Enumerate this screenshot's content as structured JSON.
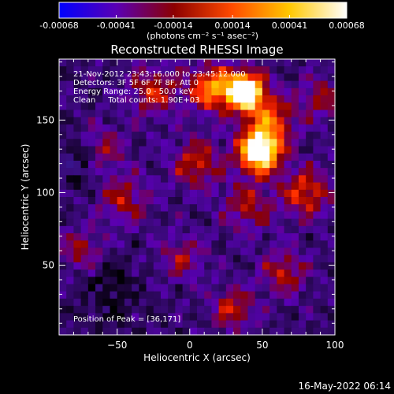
{
  "chart_data": {
    "type": "heatmap",
    "title": "Reconstructed RHESSI Image",
    "xlabel": "Heliocentric X (arcsec)",
    "ylabel": "Heliocentric Y (arcsec)",
    "xlim": [
      -90,
      100
    ],
    "ylim": [
      2,
      192
    ],
    "x_ticks": [
      -50,
      0,
      50,
      100
    ],
    "y_ticks": [
      50,
      100,
      150
    ],
    "colorbar": {
      "label": "(photons cm⁻² s⁻¹ asec⁻²)",
      "range": [
        -0.00068,
        0.00068
      ],
      "tick_values": [
        -0.00068,
        -0.00041,
        -0.00014,
        0.00014,
        0.00041,
        0.00068
      ],
      "tick_labels": [
        "-0.00068",
        "-0.00041",
        "-0.00014",
        "0.00014",
        "0.00041",
        "0.00068"
      ],
      "colors": [
        "#0000ff",
        "#5a00b4",
        "#8c0000",
        "#ff4a00",
        "#ffc800",
        "#ffffff"
      ]
    },
    "annotations": [
      "21-Nov-2012 23:43:16.000 to 23:45:12.000",
      "Detectors: 3F 5F 6F 7F 8F, Att 0",
      "Energy Range: 25.0 - 50.0 keV",
      "Clean     Total counts: 1.90E+03"
    ],
    "peak_label": "Position of Peak = [36,171]",
    "peak": [
      36,
      171
    ],
    "sources": [
      {
        "x": 38,
        "y": 170,
        "amp": 1.0,
        "sigma": 9
      },
      {
        "x": 48,
        "y": 128,
        "amp": 0.95,
        "sigma": 10
      },
      {
        "x": 15,
        "y": 172,
        "amp": 0.55,
        "sigma": 11
      },
      {
        "x": 55,
        "y": 150,
        "amp": 0.45,
        "sigma": 12
      },
      {
        "x": -25,
        "y": 170,
        "amp": 0.35,
        "sigma": 12
      },
      {
        "x": 80,
        "y": 100,
        "amp": 0.4,
        "sigma": 12
      },
      {
        "x": 5,
        "y": 120,
        "amp": 0.35,
        "sigma": 12
      },
      {
        "x": 40,
        "y": 90,
        "amp": 0.3,
        "sigma": 12
      },
      {
        "x": -45,
        "y": 95,
        "amp": 0.3,
        "sigma": 12
      },
      {
        "x": -75,
        "y": 60,
        "amp": 0.28,
        "sigma": 10
      },
      {
        "x": 65,
        "y": 45,
        "amp": 0.32,
        "sigma": 11
      },
      {
        "x": 30,
        "y": 20,
        "amp": 0.35,
        "sigma": 10
      },
      {
        "x": -5,
        "y": 55,
        "amp": 0.26,
        "sigma": 11
      },
      {
        "x": -60,
        "y": 130,
        "amp": 0.25,
        "sigma": 11
      },
      {
        "x": 90,
        "y": 165,
        "amp": 0.28,
        "sigma": 10
      },
      {
        "x": -80,
        "y": 120,
        "amp": -0.32,
        "sigma": 10
      },
      {
        "x": -55,
        "y": 30,
        "amp": -0.2,
        "sigma": 14
      }
    ]
  },
  "timestamp": "16-May-2022 06:14"
}
